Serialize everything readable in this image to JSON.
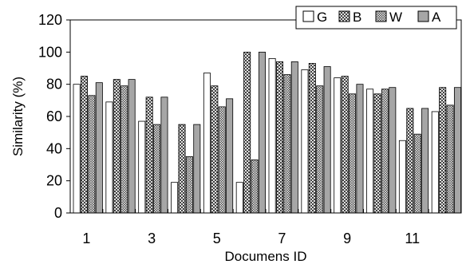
{
  "chart_data": {
    "type": "bar",
    "title": "",
    "xlabel": "Documens ID",
    "ylabel": "Similarity (%)",
    "ylim": [
      0,
      120
    ],
    "y_ticks": [
      "0",
      "20",
      "40",
      "60",
      "80",
      "100",
      "120"
    ],
    "categories": [
      "1",
      "2",
      "3",
      "4",
      "5",
      "6",
      "7",
      "8",
      "9",
      "10",
      "11",
      "12"
    ],
    "x_tick_labels": [
      "1",
      "",
      "3",
      "",
      "5",
      "",
      "7",
      "",
      "9",
      "",
      "11",
      ""
    ],
    "grid": false,
    "legend_position": "top-right",
    "series": [
      {
        "name": "G",
        "pattern": "white",
        "values": [
          80,
          69,
          57,
          19,
          87,
          19,
          96,
          89,
          84,
          77,
          45,
          63
        ]
      },
      {
        "name": "B",
        "pattern": "crosshatch",
        "values": [
          85,
          83,
          72,
          55,
          79,
          100,
          94,
          93,
          85,
          74,
          65,
          78
        ]
      },
      {
        "name": "W",
        "pattern": "dense",
        "values": [
          73,
          79,
          55,
          35,
          66,
          33,
          86,
          79,
          74,
          77,
          49,
          67
        ]
      },
      {
        "name": "A",
        "pattern": "gray",
        "values": [
          81,
          83,
          72,
          55,
          71,
          100,
          94,
          91,
          80,
          78,
          65,
          78
        ]
      }
    ],
    "colors": {
      "gray_fill": "#a6a6a6",
      "stroke": "#000000"
    }
  }
}
